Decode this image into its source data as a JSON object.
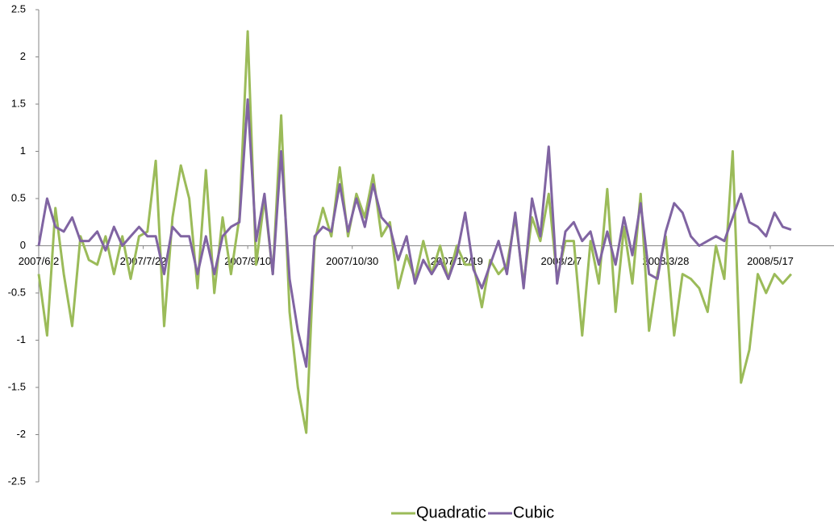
{
  "chart_data": {
    "type": "line",
    "x": [
      "2007/6/2",
      "2007/6/6",
      "2007/6/10",
      "2007/6/14",
      "2007/6/18",
      "2007/6/22",
      "2007/6/26",
      "2007/6/30",
      "2007/7/4",
      "2007/7/8",
      "2007/7/12",
      "2007/7/16",
      "2007/7/20",
      "2007/7/24",
      "2007/7/28",
      "2007/8/1",
      "2007/8/5",
      "2007/8/9",
      "2007/8/13",
      "2007/8/17",
      "2007/8/21",
      "2007/8/25",
      "2007/8/29",
      "2007/9/2",
      "2007/9/6",
      "2007/9/10",
      "2007/9/14",
      "2007/9/18",
      "2007/9/22",
      "2007/9/26",
      "2007/9/30",
      "2007/10/4",
      "2007/10/8",
      "2007/10/12",
      "2007/10/16",
      "2007/10/20",
      "2007/10/24",
      "2007/10/28",
      "2007/11/1",
      "2007/11/5",
      "2007/11/9",
      "2007/11/13",
      "2007/11/17",
      "2007/11/21",
      "2007/11/25",
      "2007/11/29",
      "2007/12/3",
      "2007/12/7",
      "2007/12/11",
      "2007/12/15",
      "2007/12/19",
      "2007/12/23",
      "2007/12/27",
      "2007/12/31",
      "2008/1/4",
      "2008/1/8",
      "2008/1/12",
      "2008/1/16",
      "2008/1/20",
      "2008/1/24",
      "2008/1/28",
      "2008/2/1",
      "2008/2/5",
      "2008/2/9",
      "2008/2/13",
      "2008/2/17",
      "2008/2/21",
      "2008/2/25",
      "2008/2/29",
      "2008/3/4",
      "2008/3/8",
      "2008/3/12",
      "2008/3/16",
      "2008/3/20",
      "2008/3/24",
      "2008/3/28",
      "2008/4/1",
      "2008/4/5",
      "2008/4/9",
      "2008/4/13",
      "2008/4/17",
      "2008/4/21",
      "2008/4/25",
      "2008/4/29",
      "2008/5/3",
      "2008/5/7",
      "2008/5/11",
      "2008/5/15",
      "2008/5/19",
      "2008/5/23",
      "2008/5/27"
    ],
    "series": [
      {
        "name": "Quadratic",
        "color": "#9bbb59",
        "values": [
          -0.3,
          -0.95,
          0.4,
          -0.3,
          -0.85,
          0.1,
          -0.15,
          -0.2,
          0.1,
          -0.3,
          0.1,
          -0.35,
          0.1,
          0.15,
          0.9,
          -0.85,
          0.3,
          0.85,
          0.5,
          -0.45,
          0.8,
          -0.5,
          0.3,
          -0.3,
          0.3,
          2.27,
          -0.2,
          0.5,
          -0.3,
          1.38,
          -0.7,
          -1.5,
          -1.98,
          0.05,
          0.4,
          0.1,
          0.83,
          0.1,
          0.55,
          0.3,
          0.75,
          0.1,
          0.25,
          -0.45,
          -0.1,
          -0.35,
          0.05,
          -0.3,
          0.0,
          -0.35,
          0.0,
          -0.2,
          -0.2,
          -0.65,
          -0.15,
          -0.3,
          -0.2,
          0.3,
          -0.4,
          0.3,
          0.05,
          0.55,
          -0.35,
          0.05,
          0.05,
          -0.95,
          0.05,
          -0.4,
          0.6,
          -0.7,
          0.2,
          -0.4,
          0.55,
          -0.9,
          -0.3,
          0.1,
          -0.95,
          -0.3,
          -0.35,
          -0.45,
          -0.7,
          0.0,
          -0.35,
          1.0,
          -1.45,
          -1.1,
          -0.3,
          -0.5,
          -0.3,
          -0.4,
          -0.3
        ]
      },
      {
        "name": "Cubic",
        "color": "#8064a2",
        "values": [
          0.0,
          0.5,
          0.2,
          0.15,
          0.3,
          0.05,
          0.05,
          0.15,
          -0.05,
          0.2,
          0.0,
          0.1,
          0.2,
          0.1,
          0.1,
          -0.3,
          0.2,
          0.1,
          0.1,
          -0.3,
          0.1,
          -0.3,
          0.1,
          0.2,
          0.25,
          1.55,
          0.05,
          0.55,
          -0.3,
          1.0,
          -0.35,
          -0.9,
          -1.28,
          0.1,
          0.2,
          0.15,
          0.65,
          0.15,
          0.5,
          0.2,
          0.65,
          0.3,
          0.2,
          -0.15,
          0.1,
          -0.4,
          -0.15,
          -0.3,
          -0.15,
          -0.35,
          -0.1,
          0.35,
          -0.25,
          -0.45,
          -0.2,
          0.05,
          -0.3,
          0.35,
          -0.45,
          0.5,
          0.1,
          1.05,
          -0.4,
          0.15,
          0.25,
          0.05,
          0.15,
          -0.2,
          0.15,
          -0.2,
          0.3,
          -0.1,
          0.45,
          -0.3,
          -0.35,
          0.15,
          0.45,
          0.35,
          0.1,
          0.0,
          0.05,
          0.1,
          0.05,
          0.3,
          0.55,
          0.25,
          0.2,
          0.1,
          0.35,
          0.2,
          0.17
        ]
      }
    ],
    "xticks": [
      "2007/6/2",
      "2007/7/22",
      "2007/9/10",
      "2007/10/30",
      "2007/12/19",
      "2008/2/7",
      "2008/3/28",
      "2008/5/17"
    ],
    "ylim": [
      -2.5,
      2.5
    ],
    "yticks": [
      2.5,
      2,
      1.5,
      1,
      0.5,
      0,
      -0.5,
      -1,
      -1.5,
      -2,
      -2.5
    ],
    "legend": "bottom"
  }
}
